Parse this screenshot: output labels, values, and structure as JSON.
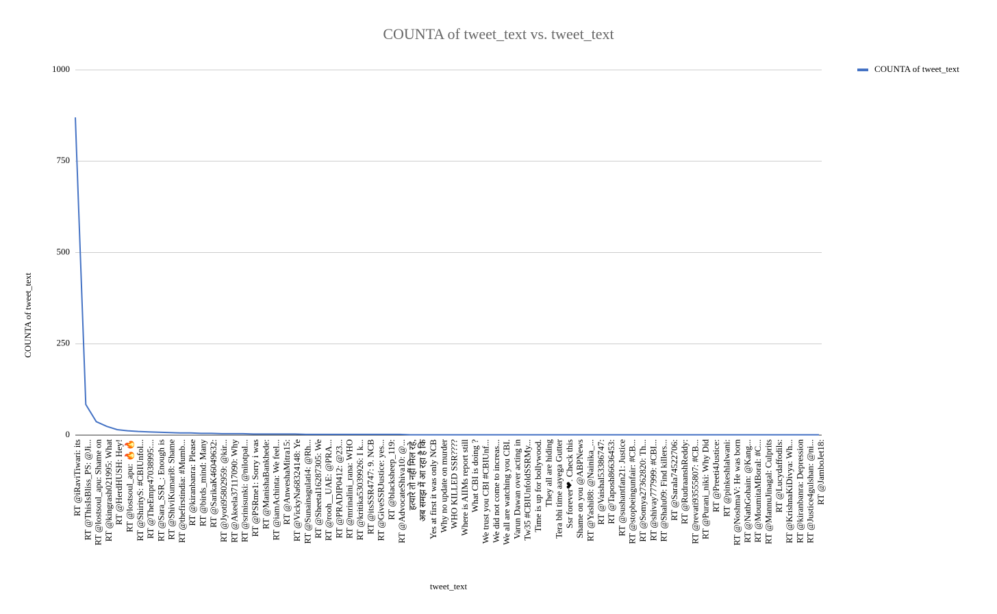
{
  "chart_data": {
    "type": "line",
    "title": "COUNTA of tweet_text vs. tweet_text",
    "x_label": "tweet_text",
    "y_label": "COUNTA of tweet_text",
    "legend_position": "right",
    "grid": true,
    "ylim": [
      0,
      1000
    ],
    "yticks": [
      0,
      250,
      500,
      750,
      1000
    ],
    "categories": [
      "RT @iRaviTiwari: its",
      "RT @ThisIsBliss_PS: @Ji...",
      "RT @lostsoul_apu: Shame on",
      "RT @kingrash021995: What",
      "RT @HerdHUSH: Hey!",
      "RT @lostsoul_apu: 🔥🔥",
      "RT @ShirityS: #CBIUnfol...",
      "RT @TheEmpr47038995:...",
      "RT @Sara_SSR_: Enough is",
      "RT @ShiviKumari8: Shame",
      "RT @thefirstindia: #Mumb...",
      "RT @kiranbanra: Please",
      "RT @birds_mind: Many",
      "RT @SarikaK46049632:",
      "RT @Jyoti95802959: @kir...",
      "RT @Akeela37117090: Why",
      "RT @srinisunki: @nilotpal...",
      "RT @PSRme1: Sorry i was",
      "RT @ManishaBankhede:",
      "RT @iamAchinta: We feel...",
      "RT @AnweshaMitra15:",
      "RT @VickyNa68324148: Ye",
      "RT @Sunainagulati4: @Rh...",
      "RT @Sheetal16287305: We",
      "RT @rooh__UAE: @PRA...",
      "RT @PRADIP0412: @23...",
      "RT @mrinalini_rana: WHO",
      "RT @kritika53039926: I k...",
      "RT @itsSSR4747: 9. NCB",
      "RT @GiveSSRJustice: yes...",
      "RT @blacksheep_119:",
      "RT @AdvocateShiva10: @...",
      "हत्यारे तो नहीं मिल रहे,",
      "अब समझ में आ रहा है कि",
      "Yes at first it was only NCB",
      "Why no update on murder",
      "WHO KILLED SSR????",
      "Where is AIIMs report still",
      "What CBI is doing ?",
      "We trust you CBI #CBIUnf...",
      "We did not come to increas...",
      "We all are watching you CBI.",
      "Varun Dawan  over acting in",
      "Tw35 #CBIUnfoldSSRMy...",
      "Time is up for bollywood.",
      "They all are hiding",
      "Tera bhi time aayega Gutter",
      "Ssr forever❤. Check this",
      "Shame on you @ABPNews",
      "RT @Yashi88: @Nainika_...",
      "RT @Vaishal53386747:",
      "RT @Taposh86636453:",
      "RT @sushantfan21: Justice",
      "RT @stopbeingunfair: #CB...",
      "RT @Somya27362820: Th...",
      "RT @shivay777999: #CBI...",
      "RT @Shalu09: Find killers...",
      "RT @Sarala74522706:",
      "RT @RudraanshReddy:",
      "RT @revati93555807: #CB...",
      "RT @Purani_niki: Why Did",
      "RT @Preeti4Justice:",
      "RT @pinkeshlalwani:",
      "RT @NoshmaV: He was born",
      "RT @NathGohain: @Kang...",
      "RT @MoumitaMBoral: #C...",
      "RT @MannuJinagal: Culprits",
      "RT @Lucydaffodils:",
      "RT @KrishnaKiDivya: Wh...",
      "RT @kiranbanra: Depression",
      "RT @Justice4gulshan: @ni...",
      "RT @JamboJet18:"
    ],
    "series": [
      {
        "name": "COUNTA of tweet_text",
        "color": "#4472c4",
        "values": [
          870,
          84,
          37,
          24,
          15,
          12,
          10,
          9,
          8,
          7,
          6,
          6,
          5,
          5,
          4,
          4,
          4,
          3,
          3,
          3,
          3,
          3,
          2,
          2,
          2,
          2,
          2,
          2,
          2,
          2,
          2,
          2,
          1,
          1,
          1,
          1,
          1,
          1,
          1,
          1,
          1,
          1,
          1,
          1,
          1,
          1,
          1,
          1,
          1,
          1,
          1,
          1,
          1,
          1,
          1,
          1,
          1,
          1,
          1,
          1,
          1,
          1,
          1,
          1,
          1,
          1,
          1,
          1,
          1,
          1,
          1,
          1
        ]
      }
    ]
  }
}
